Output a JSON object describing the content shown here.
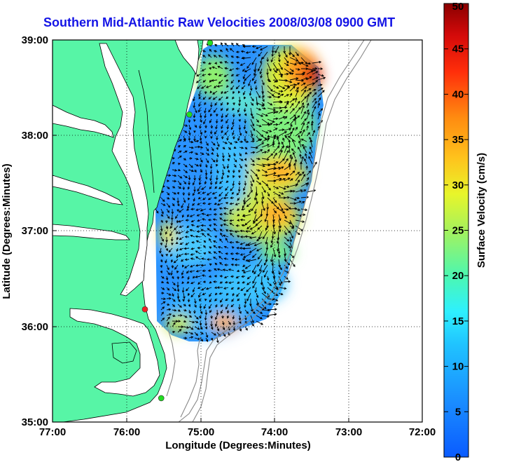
{
  "title": "Southern Mid-Atlantic Raw Velocities 2008/03/08 0900 GMT",
  "map": {
    "x_axis": {
      "label": "Longitude (Degrees:Minutes)",
      "ticks": [
        "77:00",
        "76:00",
        "75:00",
        "74:00",
        "73:00",
        "72:00"
      ]
    },
    "y_axis": {
      "label": "Latitude (Degrees:Minutes)",
      "ticks": [
        "39:00",
        "38:00",
        "37:00",
        "36:00",
        "35:00"
      ]
    },
    "grid": "dotted",
    "land_color": "#57f5a6",
    "coastline_color": "#000000",
    "bathymetry_color": "#888888",
    "station_markers": [
      {
        "color": "#22dd22",
        "lat": 38.97,
        "lon": -74.87
      },
      {
        "color": "#22dd22",
        "lat": 38.22,
        "lon": -75.15
      },
      {
        "color": "#ee2222",
        "lat": 36.18,
        "lon": -75.75
      },
      {
        "color": "#22dd22",
        "lat": 35.25,
        "lon": -75.53
      }
    ]
  },
  "colorbar": {
    "label": "Surface Velocity (cm/s)",
    "ticks": [
      "0",
      "5",
      "10",
      "15",
      "20",
      "25",
      "30",
      "35",
      "40",
      "45",
      "50"
    ],
    "min": 0,
    "max": 50,
    "colormap": "jet"
  }
}
